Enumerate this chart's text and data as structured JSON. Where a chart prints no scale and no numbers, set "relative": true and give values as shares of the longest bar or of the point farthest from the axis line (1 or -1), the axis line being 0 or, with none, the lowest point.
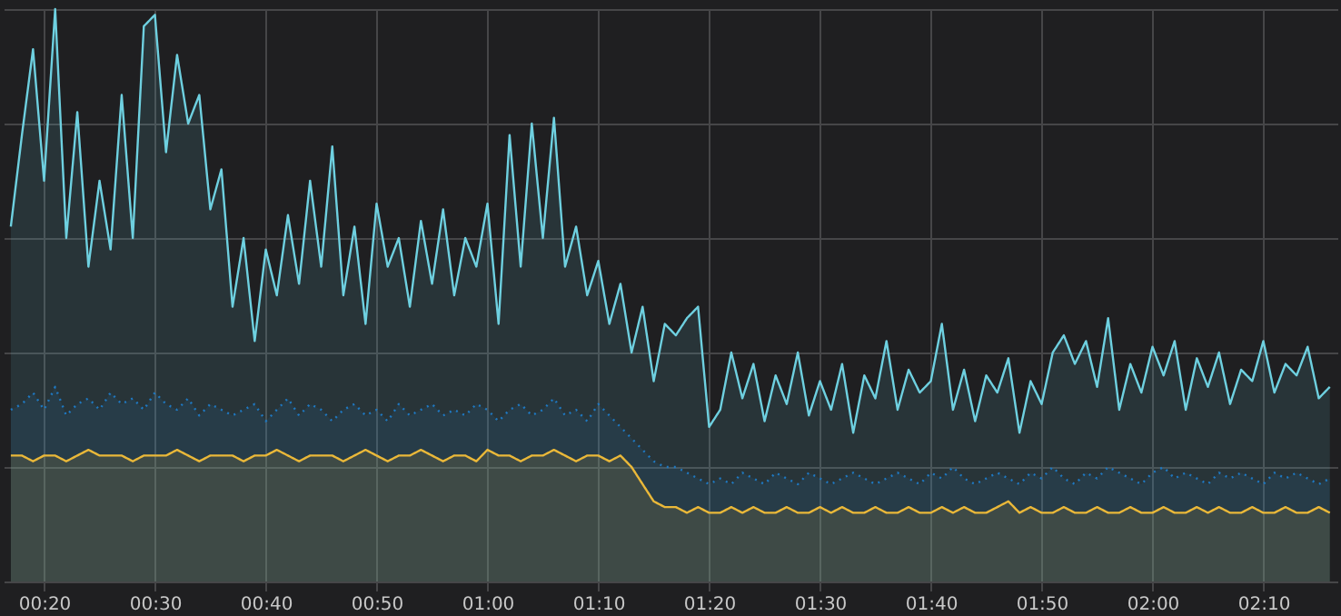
{
  "chart_data": {
    "type": "area",
    "relative": true,
    "grid": true,
    "tick_labels": "x",
    "xlim": [
      0.2725,
      2.278
    ],
    "xticks": [
      {
        "value": 0.3333,
        "label": "00:20"
      },
      {
        "value": 0.5,
        "label": "00:30"
      },
      {
        "value": 0.6667,
        "label": "00:40"
      },
      {
        "value": 0.8333,
        "label": "00:50"
      },
      {
        "value": 1,
        "label": "01:00"
      },
      {
        "value": 1.1667,
        "label": "01:10"
      },
      {
        "value": 1.3333,
        "label": "01:20"
      },
      {
        "value": 1.5,
        "label": "01:30"
      },
      {
        "value": 1.6667,
        "label": "01:40"
      },
      {
        "value": 1.8333,
        "label": "01:50"
      },
      {
        "value": 2,
        "label": "02:00"
      },
      {
        "value": 2.1667,
        "label": "02:10"
      }
    ],
    "x": [
      0.2833,
      0.3,
      0.3167,
      0.3333,
      0.35,
      0.3667,
      0.3833,
      0.4,
      0.4167,
      0.4333,
      0.45,
      0.4667,
      0.4833,
      0.5,
      0.5167,
      0.5333,
      0.55,
      0.5667,
      0.5833,
      0.6,
      0.6167,
      0.6333,
      0.65,
      0.6667,
      0.6833,
      0.7,
      0.7167,
      0.7333,
      0.75,
      0.7667,
      0.7833,
      0.8,
      0.8167,
      0.8333,
      0.85,
      0.8667,
      0.8833,
      0.9,
      0.9167,
      0.9333,
      0.95,
      0.9667,
      0.9833,
      1,
      1.0167,
      1.0333,
      1.05,
      1.0667,
      1.0833,
      1.1,
      1.1167,
      1.1333,
      1.15,
      1.1667,
      1.1833,
      1.2,
      1.2167,
      1.2333,
      1.25,
      1.2667,
      1.2833,
      1.3,
      1.3167,
      1.3333,
      1.35,
      1.3667,
      1.3833,
      1.4,
      1.4167,
      1.4333,
      1.45,
      1.4667,
      1.4833,
      1.5,
      1.5167,
      1.5333,
      1.55,
      1.5667,
      1.5833,
      1.6,
      1.6167,
      1.6333,
      1.65,
      1.6667,
      1.6833,
      1.7,
      1.7167,
      1.7333,
      1.75,
      1.7667,
      1.7833,
      1.8,
      1.8167,
      1.8333,
      1.85,
      1.8667,
      1.8833,
      1.9,
      1.9167,
      1.9333,
      1.95,
      1.9667,
      1.9833,
      2,
      2.0167,
      2.0333,
      2.05,
      2.0667,
      2.0833,
      2.1,
      2.1167,
      2.1333,
      2.15,
      2.1667,
      2.1833,
      2.2,
      2.2167,
      2.2333,
      2.25,
      2.2667
    ],
    "series": [
      {
        "color": "#6ed0e0",
        "line_style": "solid",
        "values": [
          0.62,
          0.78,
          0.93,
          0.7,
          1.0,
          0.6,
          0.82,
          0.55,
          0.7,
          0.58,
          0.85,
          0.6,
          0.97,
          0.99,
          0.75,
          0.92,
          0.8,
          0.85,
          0.65,
          0.72,
          0.48,
          0.6,
          0.42,
          0.58,
          0.5,
          0.64,
          0.52,
          0.7,
          0.55,
          0.76,
          0.5,
          0.62,
          0.45,
          0.66,
          0.55,
          0.6,
          0.48,
          0.63,
          0.52,
          0.65,
          0.5,
          0.6,
          0.55,
          0.66,
          0.45,
          0.78,
          0.55,
          0.8,
          0.6,
          0.81,
          0.55,
          0.62,
          0.5,
          0.56,
          0.45,
          0.52,
          0.4,
          0.48,
          0.35,
          0.45,
          0.43,
          0.46,
          0.48,
          0.27,
          0.3,
          0.4,
          0.32,
          0.38,
          0.28,
          0.36,
          0.31,
          0.4,
          0.29,
          0.35,
          0.3,
          0.38,
          0.26,
          0.36,
          0.32,
          0.42,
          0.3,
          0.37,
          0.33,
          0.35,
          0.45,
          0.3,
          0.37,
          0.28,
          0.36,
          0.33,
          0.39,
          0.26,
          0.35,
          0.31,
          0.4,
          0.43,
          0.38,
          0.42,
          0.34,
          0.46,
          0.3,
          0.38,
          0.33,
          0.41,
          0.36,
          0.42,
          0.3,
          0.39,
          0.34,
          0.4,
          0.31,
          0.37,
          0.35,
          0.42,
          0.33,
          0.38,
          0.36,
          0.41,
          0.32,
          0.34
        ]
      },
      {
        "color": "#1f78c1",
        "line_style": "dotted",
        "values": [
          0.3,
          0.31,
          0.33,
          0.3,
          0.34,
          0.29,
          0.31,
          0.32,
          0.3,
          0.33,
          0.31,
          0.32,
          0.3,
          0.33,
          0.31,
          0.3,
          0.32,
          0.29,
          0.31,
          0.3,
          0.29,
          0.3,
          0.31,
          0.28,
          0.3,
          0.32,
          0.29,
          0.31,
          0.3,
          0.28,
          0.3,
          0.31,
          0.29,
          0.3,
          0.28,
          0.31,
          0.29,
          0.3,
          0.31,
          0.29,
          0.3,
          0.29,
          0.31,
          0.3,
          0.28,
          0.3,
          0.31,
          0.29,
          0.3,
          0.32,
          0.29,
          0.3,
          0.28,
          0.31,
          0.29,
          0.27,
          0.25,
          0.23,
          0.21,
          0.2,
          0.2,
          0.19,
          0.18,
          0.17,
          0.18,
          0.17,
          0.19,
          0.18,
          0.17,
          0.19,
          0.18,
          0.17,
          0.19,
          0.18,
          0.17,
          0.18,
          0.19,
          0.18,
          0.17,
          0.18,
          0.19,
          0.18,
          0.17,
          0.19,
          0.18,
          0.2,
          0.18,
          0.17,
          0.18,
          0.19,
          0.18,
          0.17,
          0.19,
          0.18,
          0.2,
          0.18,
          0.17,
          0.19,
          0.18,
          0.2,
          0.19,
          0.18,
          0.17,
          0.19,
          0.2,
          0.18,
          0.19,
          0.18,
          0.17,
          0.19,
          0.18,
          0.19,
          0.18,
          0.17,
          0.19,
          0.18,
          0.19,
          0.18,
          0.17,
          0.18
        ]
      },
      {
        "color": "#eab839",
        "line_style": "solid",
        "values": [
          0.22,
          0.22,
          0.21,
          0.22,
          0.22,
          0.21,
          0.22,
          0.23,
          0.22,
          0.22,
          0.22,
          0.21,
          0.22,
          0.22,
          0.22,
          0.23,
          0.22,
          0.21,
          0.22,
          0.22,
          0.22,
          0.21,
          0.22,
          0.22,
          0.23,
          0.22,
          0.21,
          0.22,
          0.22,
          0.22,
          0.21,
          0.22,
          0.23,
          0.22,
          0.21,
          0.22,
          0.22,
          0.23,
          0.22,
          0.21,
          0.22,
          0.22,
          0.21,
          0.23,
          0.22,
          0.22,
          0.21,
          0.22,
          0.22,
          0.23,
          0.22,
          0.21,
          0.22,
          0.22,
          0.21,
          0.22,
          0.2,
          0.17,
          0.14,
          0.13,
          0.13,
          0.12,
          0.13,
          0.12,
          0.12,
          0.13,
          0.12,
          0.13,
          0.12,
          0.12,
          0.13,
          0.12,
          0.12,
          0.13,
          0.12,
          0.13,
          0.12,
          0.12,
          0.13,
          0.12,
          0.12,
          0.13,
          0.12,
          0.12,
          0.13,
          0.12,
          0.13,
          0.12,
          0.12,
          0.13,
          0.14,
          0.12,
          0.13,
          0.12,
          0.12,
          0.13,
          0.12,
          0.12,
          0.13,
          0.12,
          0.12,
          0.13,
          0.12,
          0.12,
          0.13,
          0.12,
          0.12,
          0.13,
          0.12,
          0.13,
          0.12,
          0.12,
          0.13,
          0.12,
          0.12,
          0.13,
          0.12,
          0.12,
          0.13,
          0.12
        ]
      }
    ]
  }
}
